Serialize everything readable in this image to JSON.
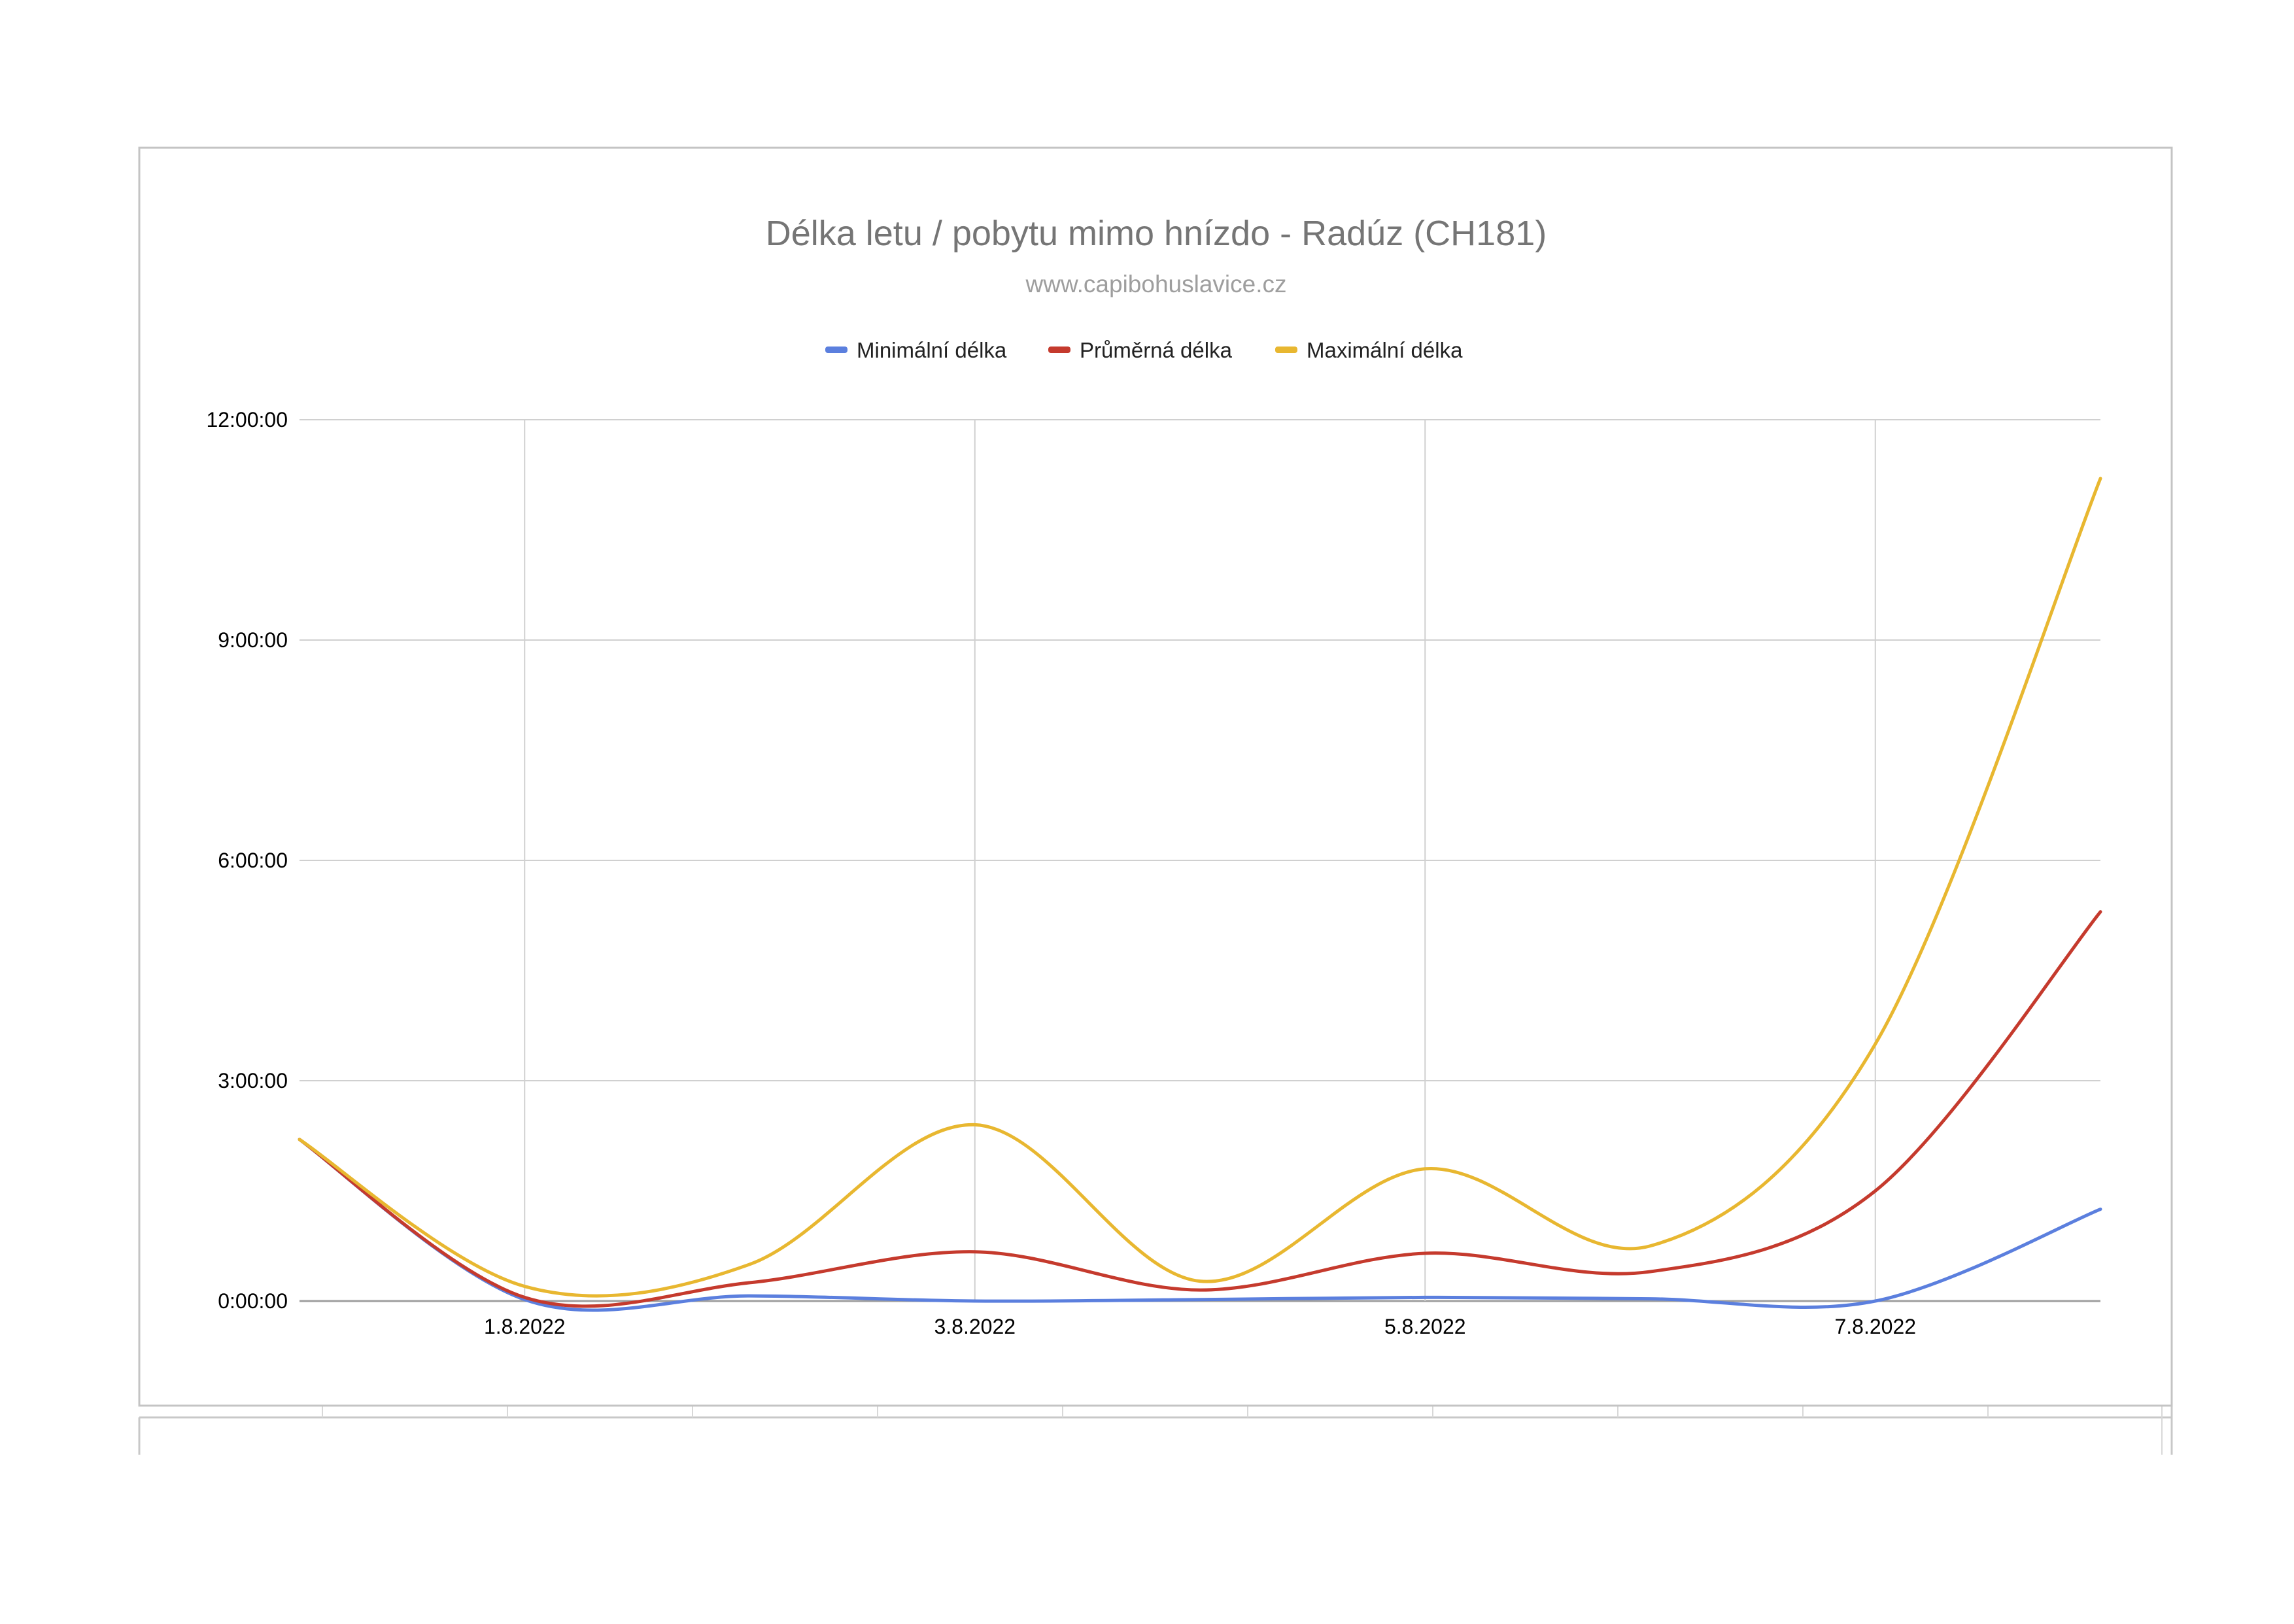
{
  "chart_data": {
    "type": "line",
    "title": "Délka letu / pobytu mimo hnízdo - Radúz (CH181)",
    "subtitle": "www.capibohuslavice.cz",
    "xlabel": "",
    "ylabel": "",
    "x": [
      "31.7.2022",
      "1.8.2022",
      "2.8.2022",
      "3.8.2022",
      "4.8.2022",
      "5.8.2022",
      "6.8.2022",
      "7.8.2022",
      "8.8.2022"
    ],
    "x_tick_labels": [
      "1.8.2022",
      "3.8.2022",
      "5.8.2022",
      "7.8.2022"
    ],
    "y_tick_labels": [
      "0:00:00",
      "3:00:00",
      "6:00:00",
      "9:00:00",
      "12:00:00"
    ],
    "y_unit": "hours",
    "ylim": [
      0,
      12
    ],
    "y_ticks": [
      0,
      3,
      6,
      9,
      12
    ],
    "grid": true,
    "smooth": true,
    "legend_position": "top",
    "series": [
      {
        "name": "Minimální délka",
        "color": "#5b7fde",
        "values": [
          2.2,
          0.02,
          0.07,
          0.0,
          0.02,
          0.05,
          0.03,
          0.0,
          1.25
        ]
      },
      {
        "name": "Průměrná délka",
        "color": "#c53a2d",
        "values": [
          2.2,
          0.05,
          0.25,
          0.67,
          0.15,
          0.65,
          0.4,
          1.5,
          5.3
        ]
      },
      {
        "name": "Maximální délka",
        "color": "#e8b730",
        "values": [
          2.2,
          0.2,
          0.5,
          2.4,
          0.27,
          1.8,
          0.75,
          3.5,
          11.2
        ]
      }
    ]
  }
}
